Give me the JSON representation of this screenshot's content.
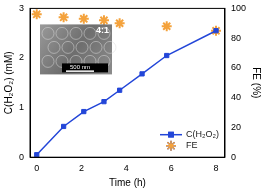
{
  "chart_data": {
    "type": "line",
    "x_label": "Time (h)",
    "y_label": "C(H₂O₂) (mM)",
    "y2_label": "FE (%)",
    "xlim": [
      -0.3,
      8.4
    ],
    "xticks": [
      0,
      2,
      4,
      6,
      8
    ],
    "ylim": [
      0,
      3
    ],
    "yticks": [
      0,
      1,
      2,
      3
    ],
    "y2lim": [
      0,
      100
    ],
    "y2ticks": [
      0,
      20,
      40,
      60,
      80,
      100
    ],
    "grid": false,
    "legend": "lower right",
    "annotations": [
      "4:1",
      "500 nm"
    ],
    "series": [
      {
        "name": "C(H₂O₂)",
        "color": "#2346d8",
        "marker": "square",
        "line_style": "solid",
        "x": [
          0,
          1.2,
          2.1,
          3,
          3.7,
          4.7,
          5.8,
          8
        ],
        "values": [
          0.05,
          0.62,
          0.92,
          1.12,
          1.35,
          1.68,
          2.05,
          2.55
        ]
      },
      {
        "name": "FE",
        "type": "scatter",
        "color": "#f4a23c",
        "marker": "star",
        "axis": "y2",
        "x": [
          0,
          1.2,
          2.1,
          3,
          3.7,
          5.8,
          8
        ],
        "values": [
          96,
          94,
          93,
          92,
          90,
          88,
          85
        ]
      }
    ]
  }
}
